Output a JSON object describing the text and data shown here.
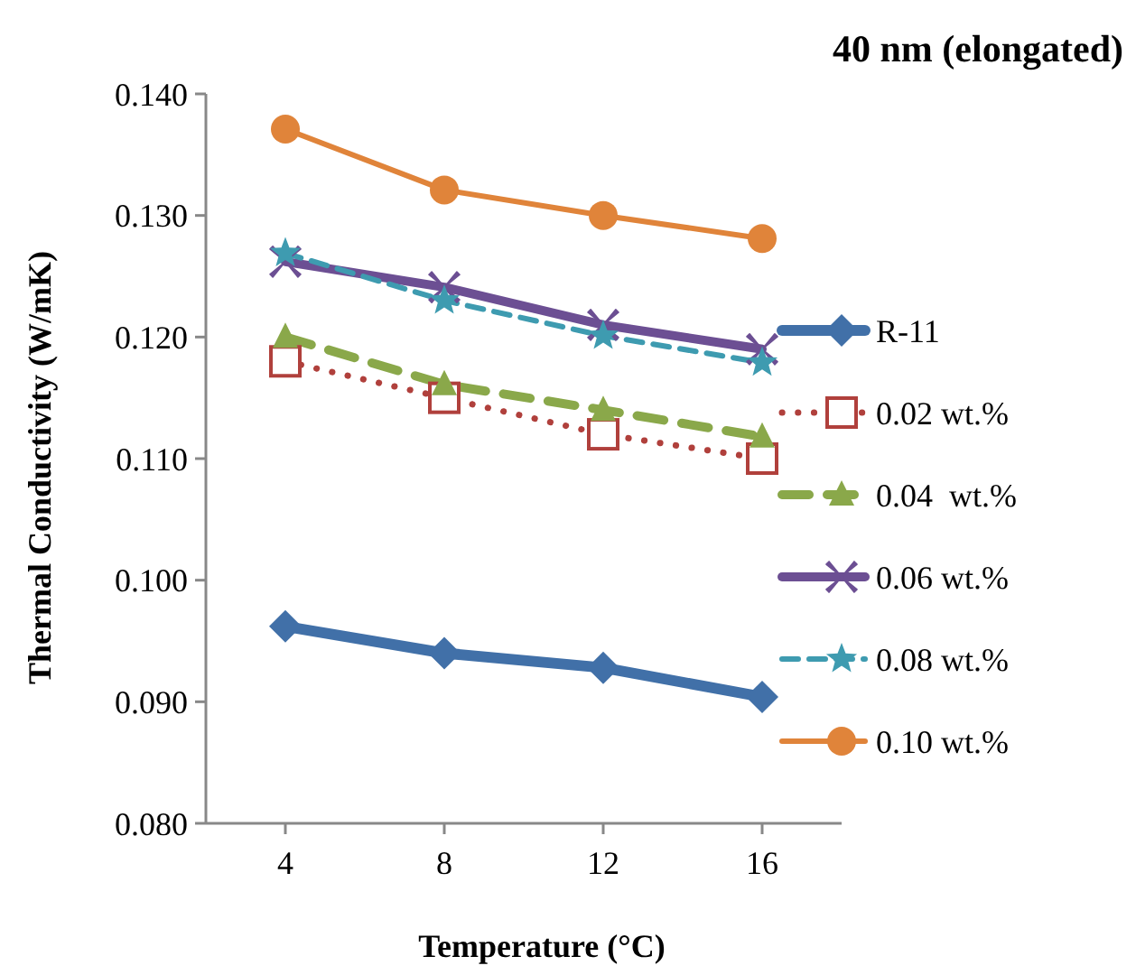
{
  "chart_data": {
    "type": "line",
    "title": "40 nm (elongated)",
    "xlabel": "Temperature (°C)",
    "ylabel": "Thermal Conductivity (W/mK)",
    "categories": [
      "4",
      "8",
      "12",
      "16"
    ],
    "ylim": [
      0.08,
      0.14
    ],
    "yticks": [
      {
        "value": 0.08,
        "label": "0.080"
      },
      {
        "value": 0.09,
        "label": "0.090"
      },
      {
        "value": 0.1,
        "label": "0.100"
      },
      {
        "value": 0.11,
        "label": "0.110"
      },
      {
        "value": 0.12,
        "label": "0.120"
      },
      {
        "value": 0.13,
        "label": "0.130"
      },
      {
        "value": 0.14,
        "label": "0.140"
      }
    ],
    "grid": false,
    "legend": "right",
    "series": [
      {
        "name": "R-11",
        "color": "#4170a8",
        "marker": "diamond",
        "line_style": "solid",
        "values": [
          0.0962,
          0.094,
          0.0928,
          0.0904
        ]
      },
      {
        "name": "0.02 wt.%",
        "color": "#b0403c",
        "marker": "square",
        "line_style": "dotted",
        "values": [
          0.118,
          0.115,
          0.112,
          0.11
        ]
      },
      {
        "name": "0.04  wt.%",
        "color": "#8aa84a",
        "marker": "triangle",
        "line_style": "dashed",
        "values": [
          0.12,
          0.1161,
          0.114,
          0.1118
        ]
      },
      {
        "name": "0.06 wt.%",
        "color": "#6c4f93",
        "marker": "cross",
        "line_style": "solid",
        "values": [
          0.1262,
          0.1241,
          0.121,
          0.119
        ]
      },
      {
        "name": "0.08 wt.%",
        "color": "#3e9bb0",
        "marker": "star",
        "line_style": "dashed",
        "values": [
          0.1269,
          0.123,
          0.1201,
          0.1179
        ]
      },
      {
        "name": "0.10 wt.%",
        "color": "#e0843a",
        "marker": "circle",
        "line_style": "solid",
        "values": [
          0.1371,
          0.1321,
          0.13,
          0.1281
        ]
      }
    ]
  }
}
